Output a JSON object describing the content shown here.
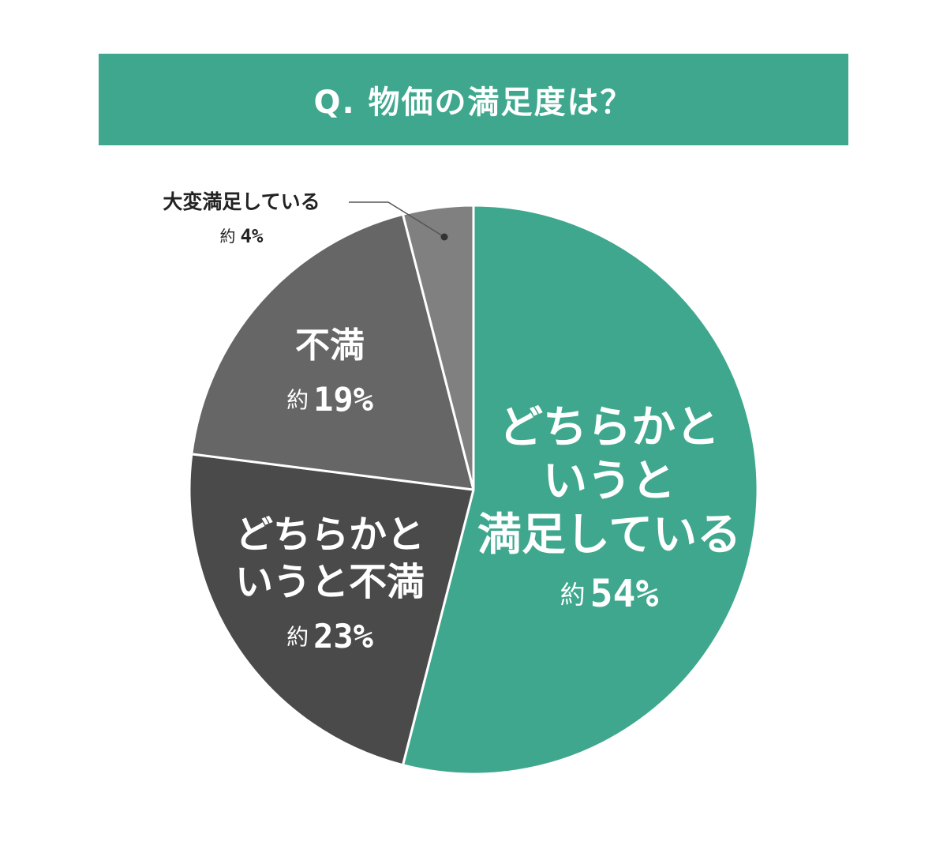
{
  "chart_data": {
    "type": "pie",
    "title": "Q. 物価の満足度は？",
    "start": "top",
    "direction": "clockwise",
    "slices": [
      {
        "lines": [
          "どちらかと",
          "いうと",
          "満足している"
        ],
        "prefix": "約",
        "percent_text": "54%",
        "value": 54,
        "color": "#3ea78d",
        "text_color": "#ffffff"
      },
      {
        "lines": [
          "どちらかと",
          "いうと不満"
        ],
        "prefix": "約",
        "percent_text": "23%",
        "value": 23,
        "color": "#4a4a4a",
        "text_color": "#ffffff"
      },
      {
        "lines": [
          "不満"
        ],
        "prefix": "約",
        "percent_text": "19%",
        "value": 19,
        "color": "#666666",
        "text_color": "#ffffff"
      },
      {
        "lines": [
          "大変満足している"
        ],
        "prefix": "約",
        "percent_text": "4%",
        "value": 4,
        "color": "#808080",
        "text_color": "#222222",
        "label_outside": true
      }
    ]
  }
}
